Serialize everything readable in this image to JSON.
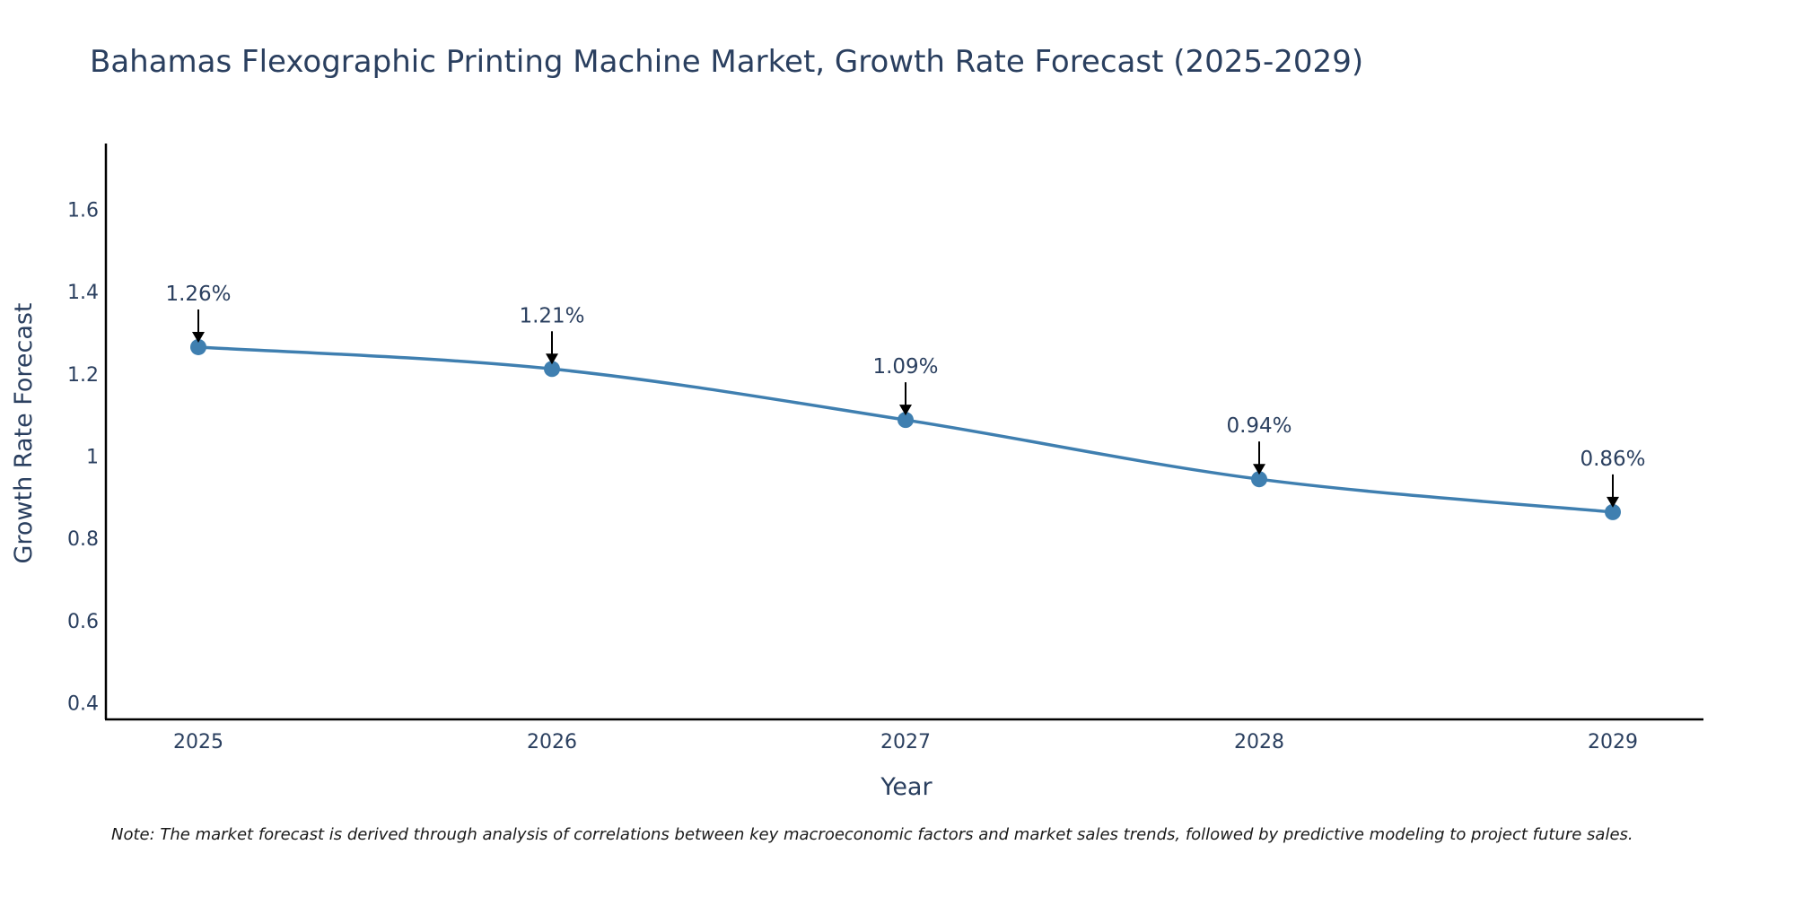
{
  "chart_data": {
    "type": "line",
    "title": "Bahamas Flexographic Printing Machine Market, Growth Rate Forecast (2025-2029)",
    "xlabel": "Year",
    "ylabel": "Growth Rate Forecast",
    "categories": [
      "2025",
      "2026",
      "2027",
      "2028",
      "2029"
    ],
    "series": [
      {
        "name": "Growth Rate Forecast",
        "values": [
          1.265,
          1.212,
          1.088,
          0.944,
          0.864
        ],
        "labels": [
          "1.26%",
          "1.21%",
          "1.09%",
          "0.94%",
          "0.86%"
        ],
        "color": "#3f7fb0"
      }
    ],
    "ylim": [
      0.36,
      1.76
    ],
    "yticks": [
      0.4,
      0.6,
      0.8,
      1,
      1.2,
      1.4,
      1.6
    ],
    "ytick_labels": [
      "0.4",
      "0.6",
      "0.8",
      "1",
      "1.2",
      "1.4",
      "1.6"
    ],
    "grid": false,
    "line_shape": "spline",
    "annotation_arrows": true
  },
  "note": "Note: The market forecast is derived through analysis of correlations between key macroeconomic factors and market sales trends, followed by predictive modeling to project future sales."
}
